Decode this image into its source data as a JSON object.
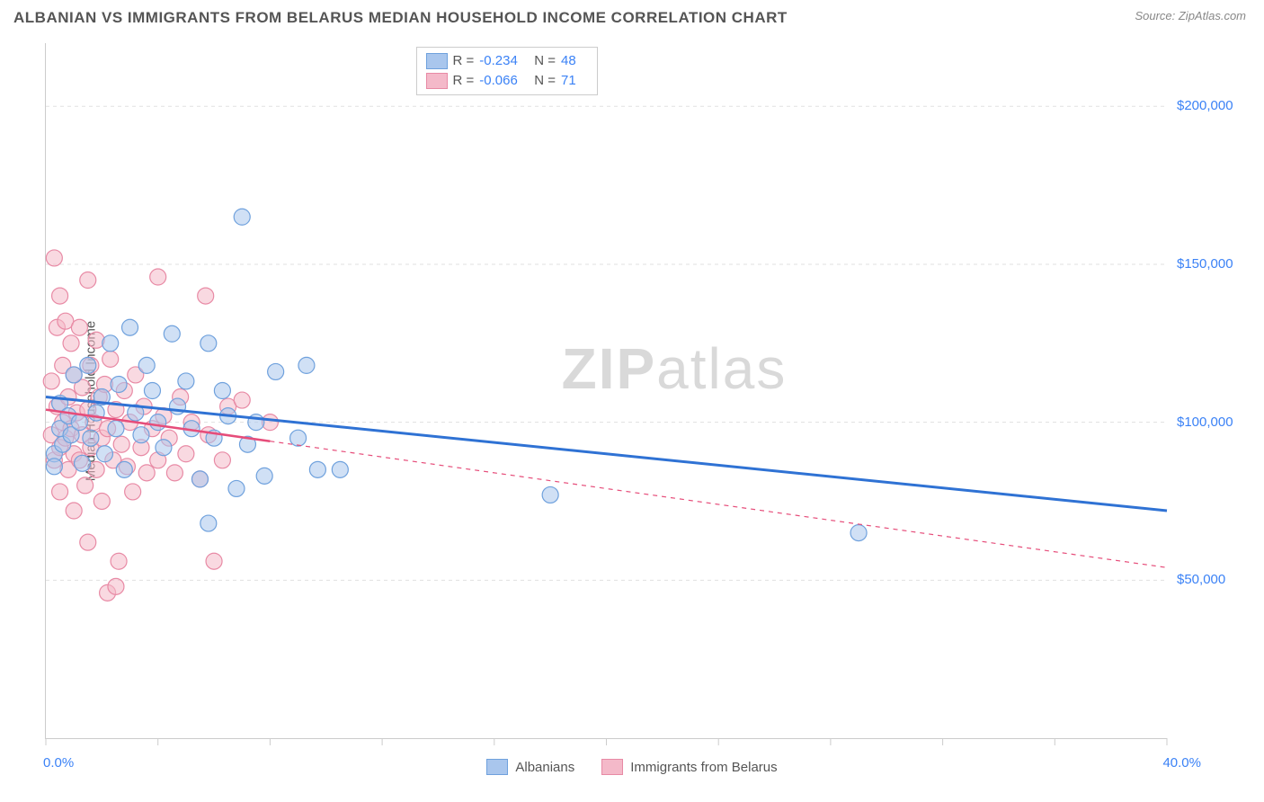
{
  "title": "ALBANIAN VS IMMIGRANTS FROM BELARUS MEDIAN HOUSEHOLD INCOME CORRELATION CHART",
  "source": "Source: ZipAtlas.com",
  "ylabel": "Median Household Income",
  "watermark": {
    "bold": "ZIP",
    "light": "atlas"
  },
  "chart": {
    "type": "scatter",
    "xlim": [
      0,
      40
    ],
    "ylim": [
      0,
      220000
    ],
    "x_tick_positions": [
      0,
      4,
      8,
      12,
      16,
      20,
      24,
      28,
      32,
      36,
      40
    ],
    "x_label_min": "0.0%",
    "x_label_max": "40.0%",
    "y_gridlines": [
      50000,
      100000,
      150000,
      200000
    ],
    "y_tick_labels": [
      "$50,000",
      "$100,000",
      "$150,000",
      "$200,000"
    ],
    "background_color": "#ffffff",
    "grid_color": "#e0e0e0",
    "grid_dash": "4 4",
    "marker_radius": 9,
    "marker_opacity": 0.55,
    "series": [
      {
        "name": "Albanians",
        "fill": "#a9c6ed",
        "stroke": "#6fa1dd",
        "line_color": "#2f72d4",
        "line_width": 3,
        "line_dash": "none",
        "extrapolate_dash": "none",
        "R": "-0.234",
        "N": "48",
        "regression": {
          "x1": 0,
          "y1": 108000,
          "x2": 40,
          "y2": 72000
        },
        "points": [
          [
            0.3,
            90000
          ],
          [
            0.3,
            86000
          ],
          [
            0.5,
            98000
          ],
          [
            0.5,
            106000
          ],
          [
            0.6,
            93000
          ],
          [
            0.8,
            102000
          ],
          [
            0.9,
            96000
          ],
          [
            1.0,
            115000
          ],
          [
            1.2,
            100000
          ],
          [
            1.3,
            87000
          ],
          [
            1.5,
            118000
          ],
          [
            1.6,
            95000
          ],
          [
            1.8,
            103000
          ],
          [
            2.0,
            108000
          ],
          [
            2.1,
            90000
          ],
          [
            2.3,
            125000
          ],
          [
            2.5,
            98000
          ],
          [
            2.6,
            112000
          ],
          [
            2.8,
            85000
          ],
          [
            3.0,
            130000
          ],
          [
            3.2,
            103000
          ],
          [
            3.4,
            96000
          ],
          [
            3.6,
            118000
          ],
          [
            3.8,
            110000
          ],
          [
            4.0,
            100000
          ],
          [
            4.2,
            92000
          ],
          [
            4.5,
            128000
          ],
          [
            4.7,
            105000
          ],
          [
            5.0,
            113000
          ],
          [
            5.2,
            98000
          ],
          [
            5.5,
            82000
          ],
          [
            5.8,
            68000
          ],
          [
            5.8,
            125000
          ],
          [
            6.0,
            95000
          ],
          [
            6.3,
            110000
          ],
          [
            6.5,
            102000
          ],
          [
            6.8,
            79000
          ],
          [
            7.0,
            165000
          ],
          [
            7.2,
            93000
          ],
          [
            7.5,
            100000
          ],
          [
            7.8,
            83000
          ],
          [
            8.2,
            116000
          ],
          [
            9.0,
            95000
          ],
          [
            9.3,
            118000
          ],
          [
            9.7,
            85000
          ],
          [
            10.5,
            85000
          ],
          [
            18.0,
            77000
          ],
          [
            29.0,
            65000
          ]
        ]
      },
      {
        "name": "Immigrants from Belarus",
        "fill": "#f4b9c9",
        "stroke": "#e88aa5",
        "line_color": "#e64d7a",
        "line_width": 2.5,
        "line_dash": "none",
        "extrapolate_dash": "5 5",
        "R": "-0.066",
        "N": "71",
        "regression_solid": {
          "x1": 0,
          "y1": 104000,
          "x2": 8,
          "y2": 94000
        },
        "regression_dashed": {
          "x1": 8,
          "y1": 94000,
          "x2": 40,
          "y2": 54000
        },
        "points": [
          [
            0.2,
            113000
          ],
          [
            0.2,
            96000
          ],
          [
            0.3,
            152000
          ],
          [
            0.3,
            88000
          ],
          [
            0.4,
            130000
          ],
          [
            0.4,
            105000
          ],
          [
            0.5,
            140000
          ],
          [
            0.5,
            92000
          ],
          [
            0.5,
            78000
          ],
          [
            0.6,
            118000
          ],
          [
            0.6,
            100000
          ],
          [
            0.7,
            132000
          ],
          [
            0.7,
            95000
          ],
          [
            0.8,
            108000
          ],
          [
            0.8,
            85000
          ],
          [
            0.9,
            125000
          ],
          [
            0.9,
            98000
          ],
          [
            1.0,
            115000
          ],
          [
            1.0,
            90000
          ],
          [
            1.0,
            72000
          ],
          [
            1.1,
            103000
          ],
          [
            1.2,
            130000
          ],
          [
            1.2,
            88000
          ],
          [
            1.3,
            111000
          ],
          [
            1.3,
            96000
          ],
          [
            1.4,
            80000
          ],
          [
            1.5,
            145000
          ],
          [
            1.5,
            104000
          ],
          [
            1.5,
            62000
          ],
          [
            1.6,
            118000
          ],
          [
            1.6,
            92000
          ],
          [
            1.7,
            100000
          ],
          [
            1.8,
            126000
          ],
          [
            1.8,
            85000
          ],
          [
            1.9,
            108000
          ],
          [
            2.0,
            95000
          ],
          [
            2.0,
            75000
          ],
          [
            2.1,
            112000
          ],
          [
            2.2,
            98000
          ],
          [
            2.2,
            46000
          ],
          [
            2.3,
            120000
          ],
          [
            2.4,
            88000
          ],
          [
            2.5,
            104000
          ],
          [
            2.5,
            48000
          ],
          [
            2.6,
            56000
          ],
          [
            2.7,
            93000
          ],
          [
            2.8,
            110000
          ],
          [
            2.9,
            86000
          ],
          [
            3.0,
            100000
          ],
          [
            3.1,
            78000
          ],
          [
            3.2,
            115000
          ],
          [
            3.4,
            92000
          ],
          [
            3.5,
            105000
          ],
          [
            3.6,
            84000
          ],
          [
            3.8,
            98000
          ],
          [
            4.0,
            88000
          ],
          [
            4.0,
            146000
          ],
          [
            4.2,
            102000
          ],
          [
            4.4,
            95000
          ],
          [
            4.6,
            84000
          ],
          [
            4.8,
            108000
          ],
          [
            5.0,
            90000
          ],
          [
            5.2,
            100000
          ],
          [
            5.5,
            82000
          ],
          [
            5.7,
            140000
          ],
          [
            5.8,
            96000
          ],
          [
            6.0,
            56000
          ],
          [
            6.3,
            88000
          ],
          [
            6.5,
            105000
          ],
          [
            7.0,
            107000
          ],
          [
            8.0,
            100000
          ]
        ]
      }
    ]
  },
  "legend_top": {
    "r_label": "R =",
    "n_label": "N ="
  },
  "legend_bottom": {
    "items": [
      "Albanians",
      "Immigrants from Belarus"
    ]
  }
}
